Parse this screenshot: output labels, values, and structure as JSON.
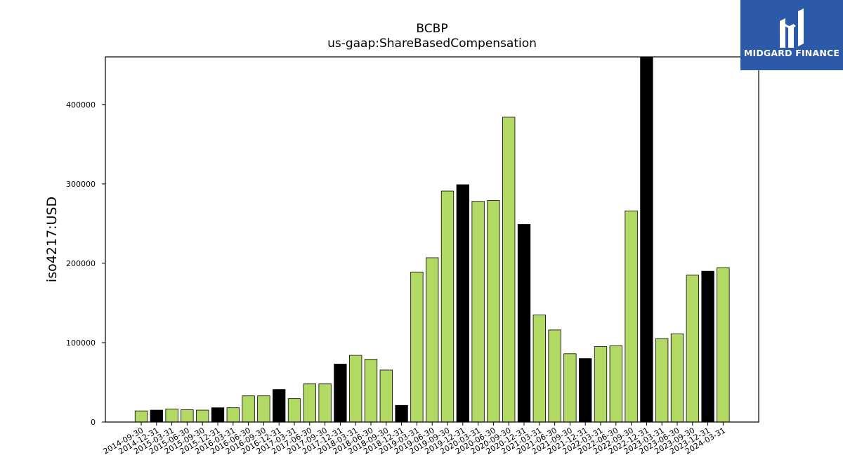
{
  "chart_data": {
    "type": "bar",
    "title": "BCBP",
    "subtitle": "us-gaap:ShareBasedCompensation",
    "ylabel": "iso4217:USD",
    "xlabel": "",
    "ylim": [
      0,
      460000
    ],
    "yticks": [
      0,
      100000,
      200000,
      300000,
      400000
    ],
    "grid": false,
    "colors": {
      "default": "#b1d963",
      "highlight": "#000000",
      "edge": "#000000"
    },
    "categories": [
      "2014-09-30",
      "2014-12-31",
      "2015-03-31",
      "2015-06-30",
      "2015-09-30",
      "2015-12-31",
      "2016-03-31",
      "2016-06-30",
      "2016-09-30",
      "2016-12-31",
      "2017-03-31",
      "2017-06-30",
      "2017-09-30",
      "2017-12-31",
      "2018-03-31",
      "2018-06-30",
      "2018-09-30",
      "2018-12-31",
      "2019-03-31",
      "2019-06-30",
      "2019-09-30",
      "2019-12-31",
      "2020-03-31",
      "2020-06-30",
      "2020-09-30",
      "2020-12-31",
      "2021-03-31",
      "2021-06-30",
      "2021-09-30",
      "2021-12-31",
      "2022-03-31",
      "2022-06-30",
      "2022-09-30",
      "2022-12-31",
      "2023-03-31",
      "2023-06-30",
      "2023-09-30",
      "2023-12-31",
      "2024-03-31"
    ],
    "values": [
      14000,
      15000,
      16500,
      15500,
      15000,
      18000,
      18000,
      33000,
      33000,
      41000,
      29500,
      48000,
      48000,
      73000,
      84000,
      79000,
      65500,
      21000,
      189000,
      207000,
      291000,
      299000,
      278000,
      279000,
      384000,
      249000,
      135000,
      116000,
      86000,
      80000,
      95000,
      96000,
      266000,
      460000,
      105000,
      111000,
      185000,
      190000,
      194500
    ],
    "highlight": [
      false,
      true,
      false,
      false,
      false,
      true,
      false,
      false,
      false,
      true,
      false,
      false,
      false,
      true,
      false,
      false,
      false,
      true,
      false,
      false,
      false,
      true,
      false,
      false,
      false,
      true,
      false,
      false,
      false,
      true,
      false,
      false,
      false,
      true,
      false,
      false,
      false,
      true,
      false
    ]
  },
  "branding": {
    "logo_text": "MIDGARD FINANCE",
    "logo_color": "#2d5aa8",
    "logo_icon": "midgard-logo-icon"
  }
}
